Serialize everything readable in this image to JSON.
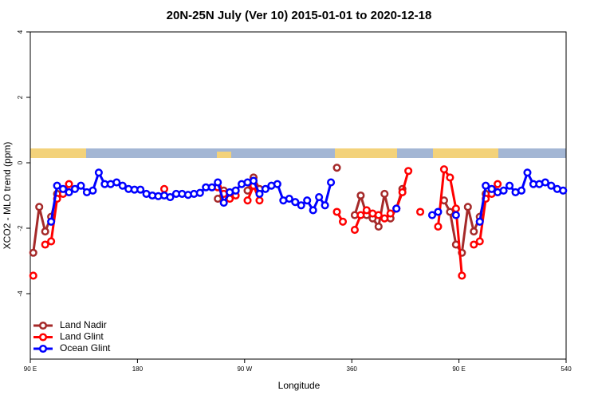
{
  "chart_data": {
    "type": "line",
    "title": "20N-25N July (Ver 10)   2015-01-01 to 2020-12-18",
    "xlabel": "Longitude",
    "ylabel": "XCO2 - MLO trend (ppm)",
    "xlim": [
      90,
      540
    ],
    "xticks": [
      {
        "value": 90,
        "label": "90 E"
      },
      180,
      {
        "value": 270,
        "label": "90 W"
      },
      360,
      {
        "value": 450,
        "label": "90 E"
      },
      540
    ],
    "ylim": [
      -6,
      4
    ],
    "yticks": [
      4,
      2,
      0,
      -2,
      -4
    ],
    "grid": false,
    "legend": "lower left",
    "series": [
      {
        "name": "Land Nadir",
        "color": "#a52a2a",
        "x": [
          92.5,
          97.5,
          102.5,
          107.5,
          112.5,
          117.5,
          247.5,
          252.5,
          257.5,
          262.5,
          267.5,
          272.5,
          277.5,
          282.5,
          287.5,
          347.5,
          352.5,
          362.5,
          367.5,
          372.5,
          377.5,
          382.5,
          387.5,
          392.5,
          397.5,
          402.5,
          407.5,
          437.5,
          442.5,
          447.5,
          452.5,
          457.5,
          462.5,
          467.5,
          472.5
        ],
        "values": [
          -2.75,
          -1.35,
          -2.1,
          -1.65,
          -0.95,
          null,
          -1.1,
          -0.85,
          -0.95,
          -0.85,
          null,
          -0.85,
          -0.45,
          -0.8,
          null,
          -0.15,
          null,
          -1.6,
          -1.0,
          -1.6,
          -1.7,
          -1.95,
          -0.95,
          -1.7,
          -1.4,
          -0.8,
          null,
          -1.15,
          -1.5,
          -2.5,
          -2.75,
          -1.35,
          -2.1,
          -1.65,
          -0.95
        ]
      },
      {
        "name": "Land Glint",
        "color": "#ff0000",
        "x": [
          92.5,
          97.5,
          102.5,
          107.5,
          112.5,
          117.5,
          122.5,
          127.5,
          202.5,
          207.5,
          247.5,
          252.5,
          257.5,
          262.5,
          267.5,
          272.5,
          277.5,
          282.5,
          287.5,
          347.5,
          352.5,
          357.5,
          362.5,
          367.5,
          372.5,
          377.5,
          382.5,
          387.5,
          392.5,
          397.5,
          402.5,
          407.5,
          412.5,
          417.5,
          422.5,
          432.5,
          437.5,
          442.5,
          447.5,
          452.5,
          457.5,
          462.5,
          467.5,
          472.5,
          477.5,
          482.5
        ],
        "values": [
          -3.45,
          null,
          -2.5,
          -2.4,
          -1.1,
          -0.95,
          -0.65,
          null,
          -0.8,
          null,
          -0.75,
          -0.95,
          -1.1,
          -1.0,
          null,
          -1.15,
          -0.7,
          -1.15,
          null,
          -1.5,
          -1.8,
          null,
          -2.05,
          -1.6,
          -1.45,
          -1.55,
          -1.6,
          -1.7,
          -1.55,
          -1.4,
          -0.9,
          -0.25,
          null,
          -1.5,
          null,
          -1.95,
          -0.2,
          -0.45,
          -1.4,
          -3.45,
          null,
          -2.5,
          -2.4,
          -1.1,
          -0.95,
          -0.65
        ]
      },
      {
        "name": "Ocean Glint",
        "color": "#0000ff",
        "x": [
          107.5,
          112.5,
          117.5,
          122.5,
          127.5,
          132.5,
          137.5,
          142.5,
          147.5,
          152.5,
          157.5,
          162.5,
          167.5,
          172.5,
          177.5,
          182.5,
          187.5,
          192.5,
          197.5,
          202.5,
          207.5,
          212.5,
          217.5,
          222.5,
          227.5,
          232.5,
          237.5,
          242.5,
          247.5,
          252.5,
          257.5,
          262.5,
          267.5,
          272.5,
          277.5,
          282.5,
          287.5,
          292.5,
          297.5,
          302.5,
          307.5,
          312.5,
          317.5,
          322.5,
          327.5,
          332.5,
          337.5,
          342.5,
          347.5,
          397.5,
          402.5,
          427.5,
          432.5,
          437.5,
          447.5,
          452.5,
          467.5,
          472.5,
          477.5,
          482.5,
          487.5,
          492.5,
          497.5,
          502.5,
          507.5,
          512.5,
          517.5,
          522.5,
          527.5,
          532.5,
          537.5
        ],
        "values": [
          -1.8,
          -0.7,
          -0.8,
          -0.9,
          -0.8,
          -0.7,
          -0.9,
          -0.85,
          -0.3,
          -0.65,
          -0.65,
          -0.6,
          -0.7,
          -0.8,
          -0.82,
          -0.82,
          -0.95,
          -1.0,
          -1.02,
          -1.0,
          -1.05,
          -0.95,
          -0.95,
          -0.98,
          -0.95,
          -0.92,
          -0.75,
          -0.75,
          -0.6,
          -1.22,
          -0.9,
          -0.85,
          -0.65,
          -0.6,
          -0.55,
          -0.95,
          -0.8,
          -0.7,
          -0.65,
          -1.15,
          -1.1,
          -1.2,
          -1.3,
          -1.15,
          -1.45,
          -1.05,
          -1.3,
          -0.6,
          null,
          -1.4,
          null,
          -1.6,
          -1.5,
          null,
          -1.6,
          null,
          -1.8,
          -0.7,
          -0.8,
          -0.9,
          -0.85,
          -0.7,
          -0.9,
          -0.85,
          -0.3,
          -0.65,
          -0.65,
          -0.6,
          -0.7,
          -0.8,
          -0.85
        ]
      }
    ]
  }
}
